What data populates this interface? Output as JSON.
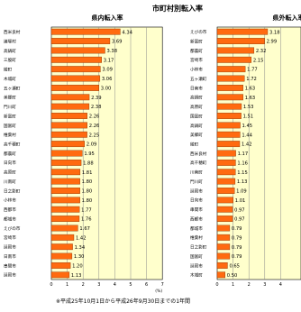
{
  "title": "市町村別転入率",
  "footnote": "※平成25年10月1日から平成26年9月30日までの1年間",
  "colors": {
    "bar": "#ff6a10",
    "bar_edge": "#8a3300",
    "plot_bg": "#ffffcc",
    "grid": "#8c8c8c"
  },
  "chart_data": [
    {
      "type": "bar",
      "orientation": "horizontal",
      "title": "県内転入率",
      "unit": "(%)",
      "xlim": [
        0,
        7
      ],
      "ticks": [
        0,
        1,
        2,
        3,
        4,
        5,
        6,
        7
      ],
      "categories": [
        "西米良村",
        "諸塚村",
        "高鍋町",
        "三股町",
        "綾町",
        "木城町",
        "五ヶ瀬町",
        "美郷町",
        "門川町",
        "新富町",
        "国富町",
        "椎葉村",
        "高千穂町",
        "都農町",
        "日向市",
        "高原町",
        "川南町",
        "日之影町",
        "小林市",
        "西都市",
        "都城市",
        "えびの市",
        "宮崎市",
        "延岡市",
        "日南市",
        "串間市",
        "延岡市"
      ],
      "values": [
        4.34,
        3.69,
        3.38,
        3.17,
        3.09,
        3.06,
        3.0,
        2.39,
        2.38,
        2.26,
        2.26,
        2.25,
        2.09,
        1.95,
        1.88,
        1.81,
        1.8,
        1.8,
        1.8,
        1.77,
        1.76,
        1.67,
        1.42,
        1.34,
        1.3,
        1.2,
        1.13
      ],
      "data_labels": [
        "4.34",
        "3.69",
        "3.38",
        "3.17",
        "3.09",
        "3.06",
        "3.00",
        "2.39",
        "2.38",
        "2.26",
        "2.26",
        "2.25",
        "2.09",
        "1.95",
        "1.88",
        "1.81",
        "1.80",
        "1.80",
        "1.80",
        "1.77",
        "1.76",
        "1.67",
        "1.42",
        "1.34",
        "1.30",
        "1.20",
        "1.13"
      ]
    },
    {
      "type": "bar",
      "orientation": "horizontal",
      "title": "県外転入率",
      "unit": "(%)",
      "xlim": [
        0,
        7
      ],
      "ticks": [
        0,
        1,
        2,
        3,
        4
      ],
      "categories": [
        "えびの市",
        "新富町",
        "都農町",
        "宮崎市",
        "小林市",
        "五ヶ瀬町",
        "日南市",
        "高鍋町",
        "高原町",
        "国富町",
        "高鍋町",
        "美郷町",
        "綾町",
        "西米良村",
        "高千穂町",
        "川南町",
        "門川町",
        "延岡市",
        "日向市",
        "串間市",
        "西都市",
        "都城市",
        "椎葉村",
        "日之影町",
        "国富町",
        "延岡市",
        "木城町"
      ],
      "values": [
        3.18,
        2.99,
        2.32,
        2.15,
        1.77,
        1.72,
        1.63,
        1.63,
        1.53,
        1.51,
        1.45,
        1.44,
        1.42,
        1.17,
        1.16,
        1.15,
        1.13,
        1.09,
        1.01,
        0.97,
        0.97,
        0.79,
        0.79,
        0.79,
        0.79,
        0.65,
        0.5
      ],
      "data_labels": [
        "3.18",
        "2.99",
        "2.32",
        "2.15",
        "1.77",
        "1.72",
        "1.63",
        "1.63",
        "1.53",
        "1.51",
        "1.45",
        "1.44",
        "1.42",
        "1.17",
        "1.16",
        "1.15",
        "1.13",
        "1.09",
        "1.01",
        "0.97",
        "0.97",
        "0.79",
        "0.79",
        "0.79",
        "0.79",
        "0.65",
        "0.50"
      ]
    }
  ]
}
